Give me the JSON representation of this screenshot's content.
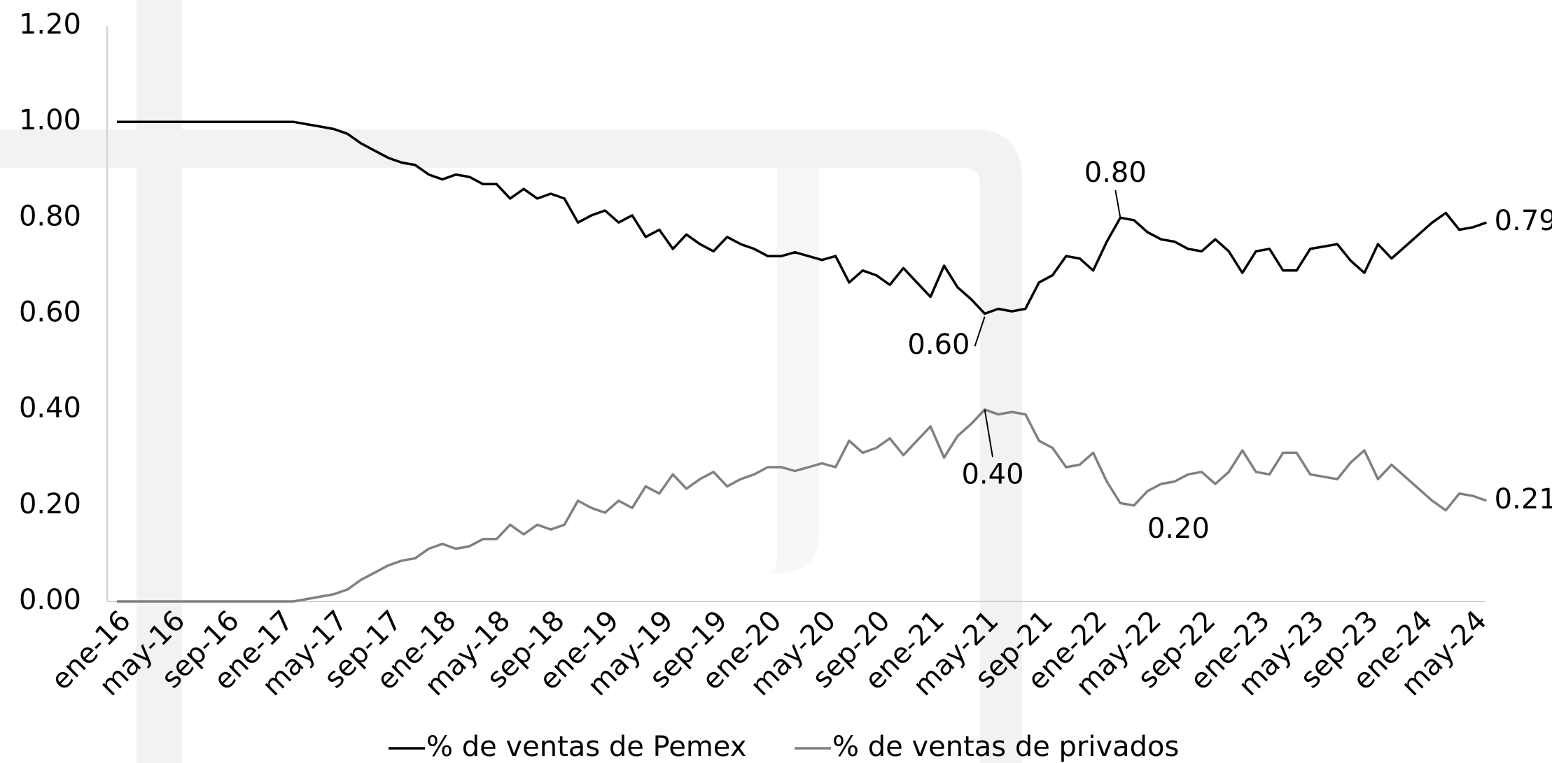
{
  "chart_data": {
    "type": "line",
    "categories": [
      "ene-16",
      null,
      null,
      null,
      "may-16",
      null,
      null,
      null,
      "sep-16",
      null,
      null,
      null,
      "ene-17",
      null,
      null,
      null,
      "may-17",
      null,
      null,
      null,
      "sep-17",
      null,
      null,
      null,
      "ene-18",
      null,
      null,
      null,
      "may-18",
      null,
      null,
      null,
      "sep-18",
      null,
      null,
      null,
      "ene-19",
      null,
      null,
      null,
      "may-19",
      null,
      null,
      null,
      "sep-19",
      null,
      null,
      null,
      "ene-20",
      null,
      null,
      null,
      "may-20",
      null,
      null,
      null,
      "sep-20",
      null,
      null,
      null,
      "ene-21",
      null,
      null,
      null,
      "may-21",
      null,
      null,
      null,
      "sep-21",
      null,
      null,
      null,
      "ene-22",
      null,
      null,
      null,
      "may-22",
      null,
      null,
      null,
      "sep-22",
      null,
      null,
      null,
      "ene-23",
      null,
      null,
      null,
      "may-23",
      null,
      null,
      null,
      "sep-23",
      null,
      null,
      null,
      "ene-24",
      null,
      null,
      null,
      "may-24",
      null
    ],
    "series": [
      {
        "name": "% de ventas de Pemex",
        "color": "#000000",
        "values": [
          1,
          1,
          1,
          1,
          1,
          1,
          1,
          1,
          1,
          1,
          1,
          1,
          1,
          1,
          0.995,
          0.99,
          0.985,
          0.975,
          0.955,
          0.94,
          0.925,
          0.915,
          0.91,
          0.89,
          0.88,
          0.89,
          0.885,
          0.87,
          0.87,
          0.84,
          0.86,
          0.84,
          0.85,
          0.84,
          0.79,
          0.805,
          0.815,
          0.79,
          0.805,
          0.76,
          0.775,
          0.735,
          0.765,
          0.745,
          0.73,
          0.76,
          0.745,
          0.735,
          0.72,
          0.72,
          0.728,
          0.72,
          0.712,
          0.72,
          0.665,
          0.69,
          0.68,
          0.66,
          0.695,
          0.665,
          0.635,
          0.7,
          0.655,
          0.63,
          0.6,
          0.61,
          0.605,
          0.61,
          0.665,
          0.68,
          0.72,
          0.715,
          0.69,
          0.75,
          0.8,
          0.795,
          0.77,
          0.755,
          0.75,
          0.735,
          0.73,
          0.755,
          0.73,
          0.685,
          0.73,
          0.735,
          0.69,
          0.69,
          0.735,
          0.74,
          0.745,
          0.71,
          0.685,
          0.745,
          0.715,
          0.74,
          0.765,
          0.79,
          0.81,
          0.775,
          0.78,
          0.79
        ],
        "value_labels": [
          null,
          null,
          null,
          null,
          null,
          null,
          null,
          null,
          null,
          null,
          null,
          null,
          null,
          null,
          null,
          null,
          null,
          null,
          null,
          null,
          null,
          null,
          null,
          null,
          null,
          null,
          null,
          null,
          null,
          null,
          null,
          null,
          null,
          null,
          null,
          null,
          null,
          null,
          null,
          null,
          null,
          null,
          null,
          null,
          null,
          null,
          null,
          null,
          null,
          null,
          null,
          null,
          null,
          null,
          null,
          null,
          null,
          null,
          null,
          null,
          null,
          null,
          null,
          null,
          "0.60",
          null,
          null,
          null,
          null,
          null,
          null,
          null,
          null,
          null,
          "0.80",
          null,
          null,
          null,
          null,
          null,
          null,
          null,
          null,
          null,
          null,
          null,
          null,
          null,
          null,
          null,
          null,
          null,
          null,
          null,
          null,
          null,
          null,
          null,
          null,
          null,
          null,
          "0.79"
        ]
      },
      {
        "name": "% de ventas de privados",
        "color": "#808080",
        "values": [
          0,
          0,
          0,
          0,
          0,
          0,
          0,
          0,
          0,
          0,
          0,
          0,
          0,
          0,
          0.005,
          0.01,
          0.015,
          0.025,
          0.045,
          0.06,
          0.075,
          0.085,
          0.09,
          0.11,
          0.12,
          0.11,
          0.115,
          0.13,
          0.13,
          0.16,
          0.14,
          0.16,
          0.15,
          0.16,
          0.21,
          0.195,
          0.185,
          0.21,
          0.195,
          0.24,
          0.225,
          0.265,
          0.235,
          0.255,
          0.27,
          0.24,
          0.255,
          0.265,
          0.28,
          0.28,
          0.272,
          0.28,
          0.288,
          0.28,
          0.335,
          0.31,
          0.32,
          0.34,
          0.305,
          0.335,
          0.365,
          0.3,
          0.345,
          0.37,
          0.4,
          0.39,
          0.395,
          0.39,
          0.335,
          0.32,
          0.28,
          0.285,
          0.31,
          0.25,
          0.205,
          0.2,
          0.23,
          0.245,
          0.25,
          0.265,
          0.27,
          0.245,
          0.27,
          0.315,
          0.27,
          0.265,
          0.31,
          0.31,
          0.265,
          0.26,
          0.255,
          0.29,
          0.315,
          0.255,
          0.285,
          0.26,
          0.235,
          0.21,
          0.19,
          0.225,
          0.22,
          0.21
        ],
        "value_labels": [
          null,
          null,
          null,
          null,
          null,
          null,
          null,
          null,
          null,
          null,
          null,
          null,
          null,
          null,
          null,
          null,
          null,
          null,
          null,
          null,
          null,
          null,
          null,
          null,
          null,
          null,
          null,
          null,
          null,
          null,
          null,
          null,
          null,
          null,
          null,
          null,
          null,
          null,
          null,
          null,
          null,
          null,
          null,
          null,
          null,
          null,
          null,
          null,
          null,
          null,
          null,
          null,
          null,
          null,
          null,
          null,
          null,
          null,
          null,
          null,
          null,
          null,
          null,
          null,
          "0.40",
          null,
          null,
          null,
          null,
          null,
          null,
          null,
          null,
          null,
          null,
          "0.20",
          null,
          null,
          null,
          null,
          null,
          null,
          null,
          null,
          null,
          null,
          null,
          null,
          null,
          null,
          null,
          null,
          null,
          null,
          null,
          null,
          null,
          null,
          null,
          null,
          null,
          "0.21"
        ]
      }
    ],
    "ylim": [
      0,
      1.2
    ],
    "yticks": [
      {
        "value": 0,
        "label": "0.00"
      },
      {
        "value": 0.2,
        "label": "0.20"
      },
      {
        "value": 0.4,
        "label": "0.40"
      },
      {
        "value": 0.6,
        "label": "0.60"
      },
      {
        "value": 0.8,
        "label": "0.80"
      },
      {
        "value": 1,
        "label": "1.00"
      },
      {
        "value": 1.2,
        "label": "1.20"
      }
    ],
    "grid": false,
    "legend": "bottom"
  }
}
